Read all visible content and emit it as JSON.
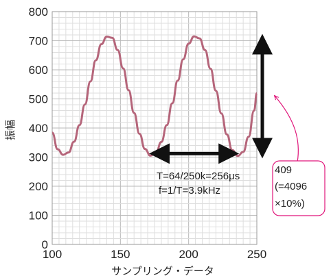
{
  "chart_data": {
    "type": "line",
    "xlabel": "サンプリング・データ",
    "ylabel": "振幅",
    "xlim": [
      100,
      250
    ],
    "ylim": [
      0,
      800
    ],
    "x_ticks": [
      100,
      150,
      200,
      250
    ],
    "y_ticks": [
      0,
      100,
      200,
      300,
      400,
      500,
      600,
      700,
      800
    ],
    "grid": true,
    "colors": {
      "series": "#b5657a",
      "arrow": "#111111",
      "callout": "#e0157a",
      "grid_major": "#b8b8b8",
      "grid_minor": "#dedede"
    },
    "series": [
      {
        "x": [
          100,
          104,
          108,
          112,
          116,
          120,
          124,
          128,
          132,
          136,
          140,
          144,
          148,
          152,
          156,
          160,
          164,
          168,
          172,
          176,
          180,
          184,
          188,
          192,
          196,
          200,
          204,
          208,
          212,
          216,
          220,
          224,
          228,
          232,
          236,
          240,
          244,
          248,
          250
        ],
        "values": [
          384,
          327,
          308,
          316,
          353,
          410,
          481,
          560,
          633,
          688,
          714,
          710,
          668,
          605,
          530,
          452,
          380,
          328,
          305,
          314,
          352,
          410,
          485,
          563,
          636,
          690,
          715,
          708,
          668,
          604,
          528,
          450,
          378,
          324,
          304,
          318,
          370,
          460,
          520
        ]
      }
    ],
    "annotations": {
      "period_line1": "T=64/250k=256μs",
      "period_line2": "f=1/T=3.9kHz",
      "amplitude_note": [
        "409",
        "(=4096",
        "×10%)"
      ]
    }
  }
}
